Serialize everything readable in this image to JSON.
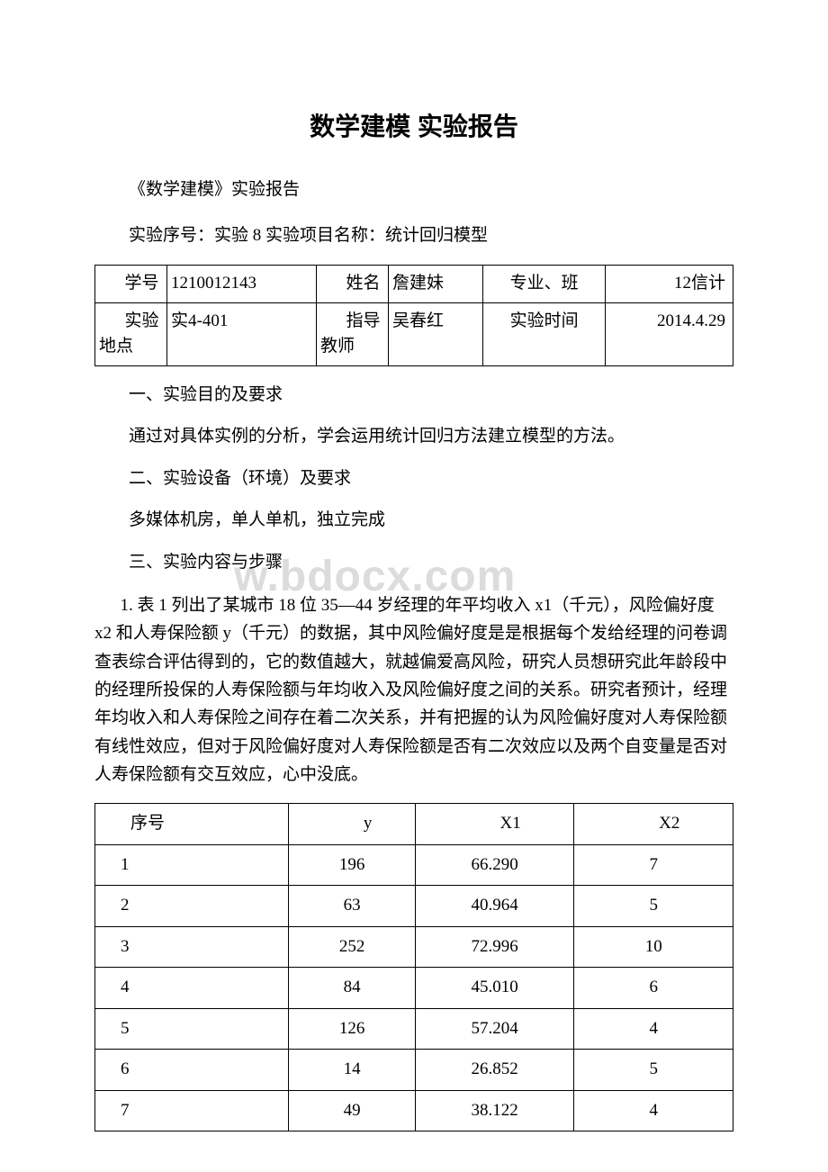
{
  "title": "数学建模 实验报告",
  "subtitle": "《数学建模》实验报告",
  "exp_line": "实验序号：实验 8                                            实验项目名称：统计回归模型",
  "info": {
    "r1c1_label": "学号",
    "r1c1_val": "1210012143",
    "r1c2_label": "姓名",
    "r1c2_val": "詹建妹",
    "r1c3_label": "专业、班",
    "r1c3_val": "12信计",
    "r2c1_label": "实验地点",
    "r2c1_val": "实4-401",
    "r2c2_label": "指导教师",
    "r2c2_val": "吴春红",
    "r2c3_label": "实验时间",
    "r2c3_val": "2014.4.29"
  },
  "sections": {
    "s1": "一、实验目的及要求",
    "s1_body": "通过对具体实例的分析，学会运用统计回归方法建立模型的方法。",
    "s2": "二、实验设备（环境）及要求",
    "s2_body": "多媒体机房，单人单机，独立完成",
    "s3": "三、实验内容与步骤",
    "problem": "1. 表 1 列出了某城市 18 位 35—44 岁经理的年平均收入 x1（千元），风险偏好度 x2 和人寿保险额 y（千元）的数据，其中风险偏好度是是根据每个发给经理的问卷调查表综合评估得到的，它的数值越大，就越偏爱高风险，研究人员想研究此年龄段中的经理所投保的人寿保险额与年均收入及风险偏好度之间的关系。研究者预计，经理年均收入和人寿保险之间存在着二次关系，并有把握的认为风险偏好度对人寿保险额有线性效应，但对于风险偏好度对人寿保险额是否有二次效应以及两个自变量是否对人寿保险额有交互效应，心中没底。"
  },
  "watermark": "w.bdocx.com",
  "table": {
    "headers": [
      "序号",
      "y",
      "X1",
      "X2"
    ],
    "rows": [
      [
        "1",
        "196",
        "66.290",
        "7"
      ],
      [
        "2",
        "63",
        "40.964",
        "5"
      ],
      [
        "3",
        "252",
        "72.996",
        "10"
      ],
      [
        "4",
        "84",
        "45.010",
        "6"
      ],
      [
        "5",
        "126",
        "57.204",
        "4"
      ],
      [
        "6",
        "14",
        "26.852",
        "5"
      ],
      [
        "7",
        "49",
        "38.122",
        "4"
      ]
    ]
  }
}
